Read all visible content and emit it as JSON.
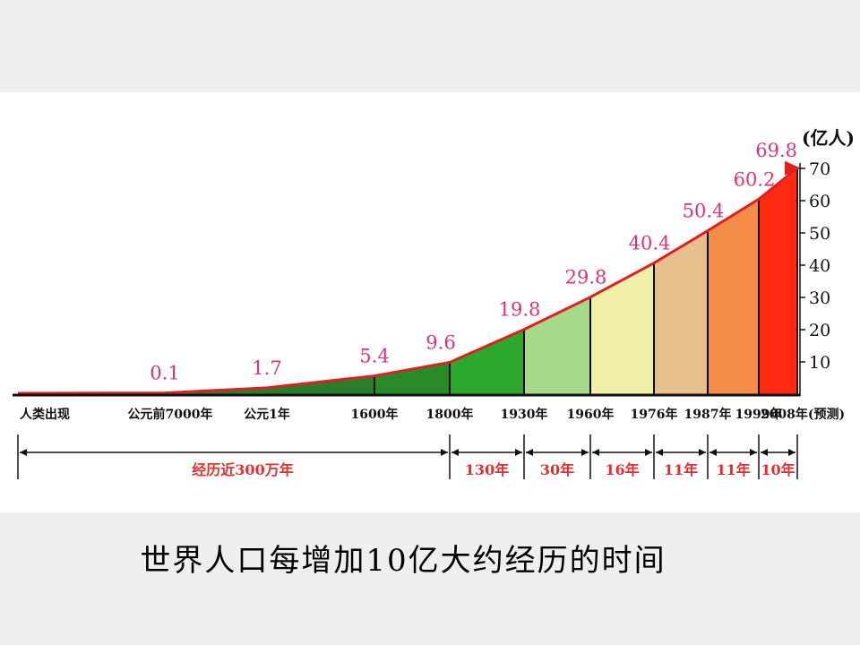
{
  "caption": "世界人口每增加10亿大约经历的时间",
  "chart_data": {
    "type": "area",
    "title": "",
    "unit_label": "(亿人)",
    "ylim": [
      0,
      70
    ],
    "y_ticks": [
      10,
      20,
      30,
      40,
      50,
      60,
      70
    ],
    "start_label": "人类出现",
    "points": [
      {
        "x_label": "人类出现",
        "value": null
      },
      {
        "x_label": "公元前7000年",
        "value": 0.1
      },
      {
        "x_label": "公元1年",
        "value": 1.7
      },
      {
        "x_label": "1600年",
        "value": 5.4
      },
      {
        "x_label": "1800年",
        "value": 9.6
      },
      {
        "x_label": "1930年",
        "value": 19.8
      },
      {
        "x_label": "1960年",
        "value": 29.8
      },
      {
        "x_label": "1976年",
        "value": 40.4
      },
      {
        "x_label": "1987年",
        "value": 50.4
      },
      {
        "x_label": "1999年",
        "value": 60.2
      },
      {
        "x_label": "2008年(预测)",
        "value": 69.8
      }
    ],
    "band_colors": [
      "#2a8a2a",
      "#2ca82c",
      "#a6d98a",
      "#f0f0a8",
      "#e8c08e",
      "#f58c4a",
      "#ff2a12"
    ],
    "line_color": "#e02020",
    "value_label_color": "#e0307a",
    "interval_label_color": "#e03030",
    "intervals": [
      "经历近300万年",
      "130年",
      "30年",
      "16年",
      "11年",
      "11年",
      "10年"
    ]
  }
}
